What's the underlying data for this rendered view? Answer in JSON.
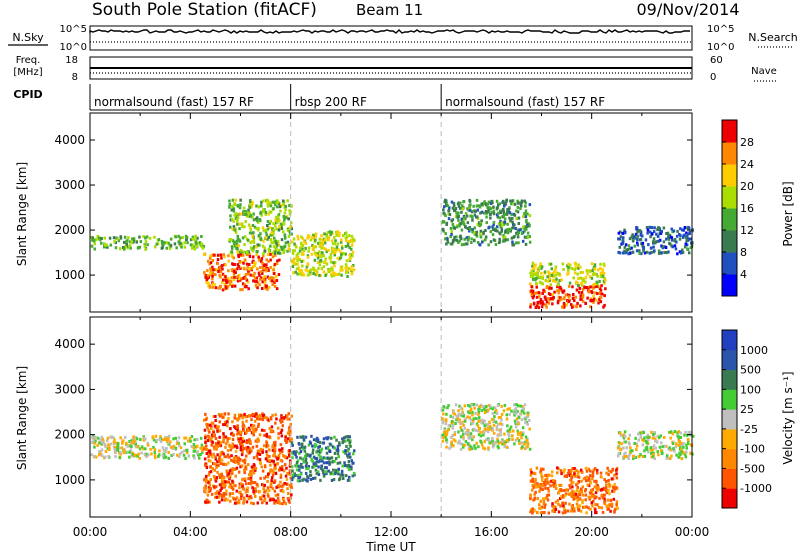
{
  "header": {
    "station": "South Pole Station (fitACF)",
    "beam": "Beam 11",
    "date": "09/Nov/2014"
  },
  "summary_panels": {
    "nsky_label": "N.Sky",
    "nsky_ticks": [
      "10^5",
      "10^0"
    ],
    "nsearch_label": "N.Search",
    "nsearch_ticks": [
      "10^5",
      "10^0"
    ],
    "freq_label_line1": "Freq.",
    "freq_label_line2": "[MHz]",
    "freq_ticks": [
      "18",
      "8"
    ],
    "nave_label": "Nave",
    "nave_ticks": [
      "60",
      "0"
    ],
    "cpid_label": "CPID",
    "cpid_segments": [
      {
        "label": "normalsound (fast) 157 RF",
        "start_h": 0,
        "end_h": 8
      },
      {
        "label": "rbsp 200 RF",
        "start_h": 8,
        "end_h": 14
      },
      {
        "label": "normalsound (fast) 157 RF",
        "start_h": 14,
        "end_h": 24
      }
    ]
  },
  "chart_data": [
    {
      "type": "heatmap",
      "name": "power",
      "ylabel": "Slant Range [km]",
      "yticks": [
        "1000",
        "2000",
        "3000",
        "4000"
      ],
      "ylim": [
        180,
        4600
      ],
      "xlim_hours": [
        0,
        24
      ],
      "colorbar_label": "Power [dB]",
      "colorbar_ticks": [
        "28",
        "24",
        "20",
        "16",
        "12",
        "8",
        "4"
      ],
      "colorscale": [
        "#0000ff",
        "#2050c0",
        "#3a7a50",
        "#44aa33",
        "#aadd00",
        "#ffcc00",
        "#ff8800",
        "#ee0000"
      ],
      "regions": [
        {
          "t0": 0.0,
          "t1": 4.5,
          "r0": 1600,
          "r1": 1900,
          "level": 0.45
        },
        {
          "t0": 4.5,
          "t1": 7.5,
          "r0": 700,
          "r1": 1500,
          "level": 0.9
        },
        {
          "t0": 5.5,
          "t1": 8.0,
          "r0": 1500,
          "r1": 2700,
          "level": 0.5
        },
        {
          "t0": 8.0,
          "t1": 10.5,
          "r0": 1000,
          "r1": 2000,
          "level": 0.6
        },
        {
          "t0": 14.0,
          "t1": 17.5,
          "r0": 1700,
          "r1": 2700,
          "level": 0.35
        },
        {
          "t0": 17.5,
          "t1": 20.5,
          "r0": 300,
          "r1": 800,
          "level": 0.95
        },
        {
          "t0": 17.5,
          "t1": 20.5,
          "r0": 800,
          "r1": 1300,
          "level": 0.6
        },
        {
          "t0": 21.0,
          "t1": 24.0,
          "r0": 1500,
          "r1": 2100,
          "level": 0.2
        }
      ]
    },
    {
      "type": "heatmap",
      "name": "velocity",
      "ylabel": "Slant Range [km]",
      "yticks": [
        "1000",
        "2000",
        "3000",
        "4000"
      ],
      "ylim": [
        180,
        4600
      ],
      "xlim_hours": [
        0,
        24
      ],
      "xticks": [
        "00:00",
        "04:00",
        "08:00",
        "12:00",
        "16:00",
        "20:00",
        "00:00"
      ],
      "xlabel": "Time UT",
      "colorbar_label": "Velocity [m s⁻¹]",
      "colorbar_ticks": [
        "1000",
        "500",
        "100",
        "25",
        "-25",
        "-100",
        "-500",
        "-1000"
      ],
      "colorscale": [
        "#ee0000",
        "#ff5500",
        "#ff8800",
        "#ffaa00",
        "#bfbfbf",
        "#44cc33",
        "#3a7a50",
        "#2b55aa",
        "#2040c0"
      ],
      "regions": [
        {
          "t0": 0.0,
          "t1": 4.5,
          "r0": 1500,
          "r1": 2000,
          "level": 0.5
        },
        {
          "t0": 4.5,
          "t1": 8.0,
          "r0": 500,
          "r1": 2500,
          "level": 0.15
        },
        {
          "t0": 8.0,
          "t1": 10.5,
          "r0": 1000,
          "r1": 2000,
          "level": 0.78
        },
        {
          "t0": 14.0,
          "t1": 17.5,
          "r0": 1700,
          "r1": 2700,
          "level": 0.5
        },
        {
          "t0": 17.5,
          "t1": 21.0,
          "r0": 300,
          "r1": 1300,
          "level": 0.2
        },
        {
          "t0": 21.0,
          "t1": 24.0,
          "r0": 1500,
          "r1": 2100,
          "level": 0.5
        }
      ]
    }
  ]
}
